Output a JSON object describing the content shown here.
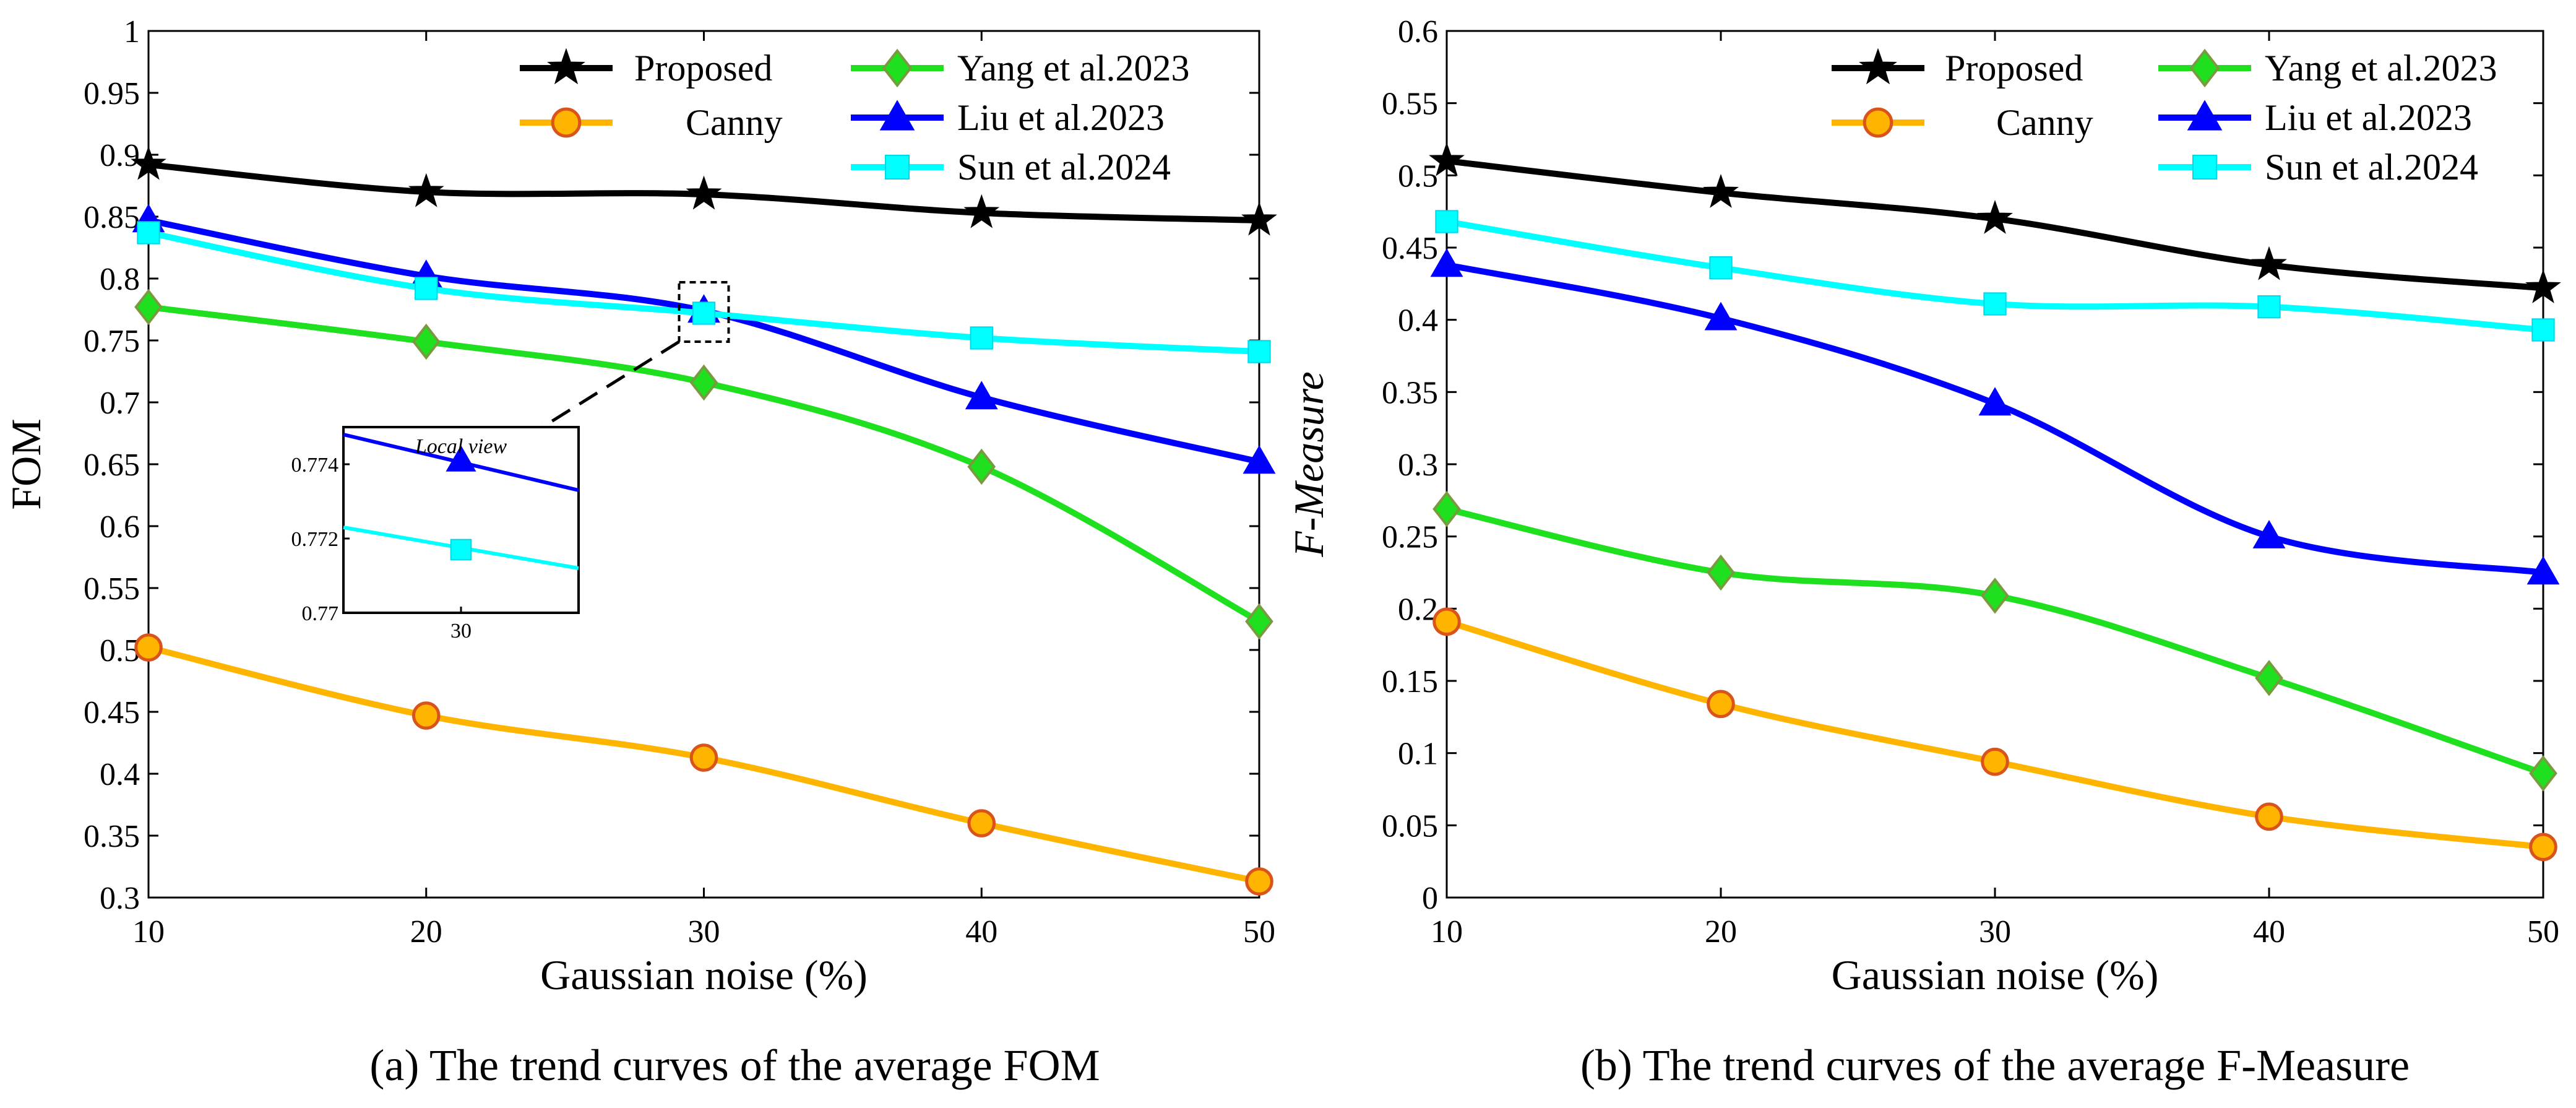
{
  "chart_data": [
    {
      "type": "line",
      "panel": "a",
      "caption": "(a) The trend curves of the average FOM",
      "xlabel": "Gaussian noise (%)",
      "ylabel": "FOM",
      "x": [
        10,
        20,
        30,
        40,
        50
      ],
      "xlim": [
        10,
        50
      ],
      "ylim": [
        0.3,
        1
      ],
      "xticks": [
        "10",
        "20",
        "30",
        "40",
        "50"
      ],
      "yticks": [
        "0.3",
        "0.35",
        "0.4",
        "0.45",
        "0.5",
        "0.55",
        "0.6",
        "0.65",
        "0.7",
        "0.75",
        "0.8",
        "0.85",
        "0.9",
        "0.95",
        "1"
      ],
      "series": [
        {
          "name": "Proposed",
          "values": [
            0.892,
            0.87,
            0.868,
            0.853,
            0.847
          ],
          "color": "#000000",
          "marker": "star"
        },
        {
          "name": "Canny",
          "values": [
            0.502,
            0.447,
            0.413,
            0.36,
            0.313
          ],
          "color": "#FFB400",
          "marker": "circle"
        },
        {
          "name": "Yang et al.2023",
          "values": [
            0.777,
            0.749,
            0.716,
            0.648,
            0.523
          ],
          "color": "#1EE01E",
          "marker": "diamond"
        },
        {
          "name": "Liu et al.2023",
          "values": [
            0.847,
            0.802,
            0.774,
            0.704,
            0.652
          ],
          "color": "#0000FF",
          "marker": "triangle"
        },
        {
          "name": "Sun et al.2024",
          "values": [
            0.837,
            0.792,
            0.772,
            0.752,
            0.741
          ],
          "color": "#00FFFF",
          "marker": "square"
        }
      ],
      "inset": {
        "title": "Local view",
        "xticks": [
          "30"
        ],
        "yticks": [
          "0.77",
          "0.772",
          "0.774"
        ],
        "ylim": [
          0.77,
          0.775
        ]
      }
    },
    {
      "type": "line",
      "panel": "b",
      "caption": "(b) The trend curves of the average F-Measure",
      "xlabel": "Gaussian noise (%)",
      "ylabel": "F-Measure",
      "x": [
        10,
        20,
        30,
        40,
        50
      ],
      "xlim": [
        10,
        50
      ],
      "ylim": [
        0,
        0.6
      ],
      "xticks": [
        "10",
        "20",
        "30",
        "40",
        "50"
      ],
      "yticks": [
        "0",
        "0.05",
        "0.1",
        "0.15",
        "0.2",
        "0.25",
        "0.3",
        "0.35",
        "0.4",
        "0.45",
        "0.5",
        "0.55",
        "0.6"
      ],
      "series": [
        {
          "name": "Proposed",
          "values": [
            0.51,
            0.488,
            0.47,
            0.438,
            0.422
          ],
          "color": "#000000",
          "marker": "star"
        },
        {
          "name": "Canny",
          "values": [
            0.191,
            0.134,
            0.094,
            0.056,
            0.035
          ],
          "color": "#FFB400",
          "marker": "circle"
        },
        {
          "name": "Yang et al.2023",
          "values": [
            0.269,
            0.225,
            0.209,
            0.152,
            0.086
          ],
          "color": "#1EE01E",
          "marker": "diamond"
        },
        {
          "name": "Liu et al.2023",
          "values": [
            0.438,
            0.401,
            0.342,
            0.25,
            0.225
          ],
          "color": "#0000FF",
          "marker": "triangle"
        },
        {
          "name": "Sun et al.2024",
          "values": [
            0.468,
            0.436,
            0.411,
            0.409,
            0.393
          ],
          "color": "#00FFFF",
          "marker": "square"
        }
      ]
    }
  ]
}
